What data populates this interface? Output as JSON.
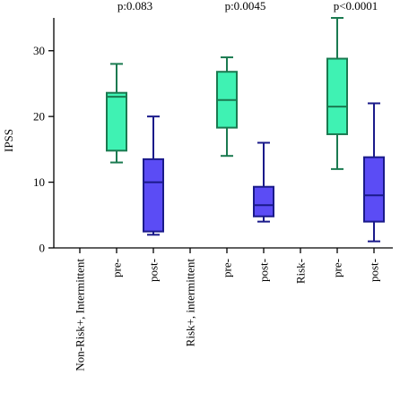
{
  "chart_data": {
    "type": "box",
    "ylabel": "IPSS",
    "ylim": [
      0,
      35
    ],
    "yticks": [
      0,
      10,
      20,
      30
    ],
    "grid": false,
    "categories": [
      "Non-Risk+, Intermittent",
      "pre-",
      "post-",
      "Risk+, intermittent",
      "pre-",
      "post-",
      "Risk-",
      "pre-",
      "post-"
    ],
    "pvalues": [
      "p:0.083",
      "p:0.0045",
      "p<0.0001"
    ],
    "boxes": [
      {
        "category_index": 1,
        "group": "pre-",
        "min": 13,
        "q1": 14.8,
        "median": 23.0,
        "q3": 23.6,
        "max": 28,
        "color": "#3ff2b3",
        "stroke": "#1a7a50"
      },
      {
        "category_index": 2,
        "group": "post-",
        "min": 2,
        "q1": 2.5,
        "median": 10.0,
        "q3": 13.5,
        "max": 20,
        "color": "#5b4cf5",
        "stroke": "#1a1a8a"
      },
      {
        "category_index": 4,
        "group": "pre-",
        "min": 14,
        "q1": 18.3,
        "median": 22.5,
        "q3": 26.8,
        "max": 29,
        "color": "#3ff2b3",
        "stroke": "#1a7a50"
      },
      {
        "category_index": 5,
        "group": "post-",
        "min": 4,
        "q1": 4.8,
        "median": 6.5,
        "q3": 9.3,
        "max": 16,
        "color": "#5b4cf5",
        "stroke": "#1a1a8a"
      },
      {
        "category_index": 7,
        "group": "pre-",
        "min": 12,
        "q1": 17.3,
        "median": 21.5,
        "q3": 28.8,
        "max": 35,
        "color": "#3ff2b3",
        "stroke": "#1a7a50"
      },
      {
        "category_index": 8,
        "group": "post-",
        "min": 1,
        "q1": 4.0,
        "median": 8.0,
        "q3": 13.8,
        "max": 22,
        "color": "#5b4cf5",
        "stroke": "#1a1a8a"
      }
    ]
  }
}
